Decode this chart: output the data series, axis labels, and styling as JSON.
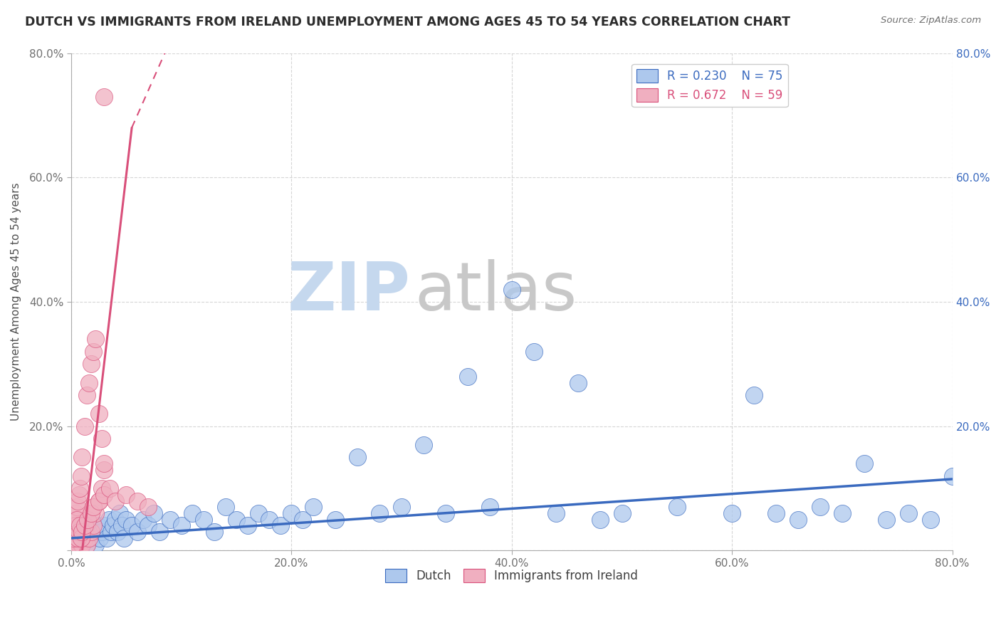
{
  "title": "DUTCH VS IMMIGRANTS FROM IRELAND UNEMPLOYMENT AMONG AGES 45 TO 54 YEARS CORRELATION CHART",
  "source": "Source: ZipAtlas.com",
  "ylabel": "Unemployment Among Ages 45 to 54 years",
  "xlim": [
    0.0,
    0.8
  ],
  "ylim": [
    0.0,
    0.8
  ],
  "xticks": [
    0.0,
    0.2,
    0.4,
    0.6,
    0.8
  ],
  "yticks": [
    0.0,
    0.2,
    0.4,
    0.6,
    0.8
  ],
  "legend_blue_r": "R = 0.230",
  "legend_blue_n": "N = 75",
  "legend_pink_r": "R = 0.672",
  "legend_pink_n": "N = 59",
  "blue_color": "#adc8ed",
  "pink_color": "#f0afc0",
  "blue_line_color": "#3a6abf",
  "pink_line_color": "#d94f7a",
  "title_color": "#2c2c2c",
  "background_color": "#ffffff",
  "watermark_zip_color": "#c5d8ee",
  "watermark_atlas_color": "#c8c8c8",
  "blue_line_x0": 0.0,
  "blue_line_y0": 0.02,
  "blue_line_x1": 0.8,
  "blue_line_y1": 0.115,
  "pink_line_solid_x0": 0.01,
  "pink_line_solid_y0": 0.0,
  "pink_line_solid_x1": 0.055,
  "pink_line_solid_y1": 0.68,
  "pink_line_dash_x0": 0.055,
  "pink_line_dash_y0": 0.68,
  "pink_line_dash_x1": 0.085,
  "pink_line_dash_y1": 0.8,
  "dutch_x": [
    0.002,
    0.003,
    0.004,
    0.005,
    0.006,
    0.007,
    0.008,
    0.009,
    0.01,
    0.012,
    0.014,
    0.016,
    0.018,
    0.02,
    0.022,
    0.024,
    0.026,
    0.028,
    0.03,
    0.032,
    0.034,
    0.036,
    0.038,
    0.04,
    0.042,
    0.044,
    0.046,
    0.048,
    0.05,
    0.055,
    0.06,
    0.065,
    0.07,
    0.075,
    0.08,
    0.09,
    0.1,
    0.11,
    0.12,
    0.13,
    0.14,
    0.15,
    0.16,
    0.17,
    0.18,
    0.19,
    0.2,
    0.21,
    0.22,
    0.24,
    0.26,
    0.28,
    0.3,
    0.32,
    0.34,
    0.36,
    0.38,
    0.4,
    0.42,
    0.44,
    0.46,
    0.48,
    0.5,
    0.55,
    0.6,
    0.62,
    0.64,
    0.66,
    0.68,
    0.7,
    0.72,
    0.74,
    0.76,
    0.78,
    0.8
  ],
  "dutch_y": [
    0.01,
    0.02,
    0.01,
    0.03,
    0.01,
    0.02,
    0.03,
    0.01,
    0.02,
    0.03,
    0.01,
    0.04,
    0.02,
    0.03,
    0.01,
    0.04,
    0.02,
    0.03,
    0.04,
    0.02,
    0.05,
    0.03,
    0.04,
    0.05,
    0.03,
    0.06,
    0.04,
    0.02,
    0.05,
    0.04,
    0.03,
    0.05,
    0.04,
    0.06,
    0.03,
    0.05,
    0.04,
    0.06,
    0.05,
    0.03,
    0.07,
    0.05,
    0.04,
    0.06,
    0.05,
    0.04,
    0.06,
    0.05,
    0.07,
    0.05,
    0.15,
    0.06,
    0.07,
    0.17,
    0.06,
    0.28,
    0.07,
    0.42,
    0.32,
    0.06,
    0.27,
    0.05,
    0.06,
    0.07,
    0.06,
    0.25,
    0.06,
    0.05,
    0.07,
    0.06,
    0.14,
    0.05,
    0.06,
    0.05,
    0.12
  ],
  "ireland_x": [
    0.001,
    0.002,
    0.003,
    0.004,
    0.005,
    0.006,
    0.007,
    0.008,
    0.009,
    0.01,
    0.012,
    0.014,
    0.016,
    0.018,
    0.02,
    0.022,
    0.025,
    0.028,
    0.03,
    0.001,
    0.002,
    0.003,
    0.004,
    0.005,
    0.006,
    0.007,
    0.008,
    0.009,
    0.01,
    0.012,
    0.014,
    0.016,
    0.018,
    0.02,
    0.022,
    0.025,
    0.028,
    0.03,
    0.001,
    0.002,
    0.003,
    0.004,
    0.005,
    0.006,
    0.007,
    0.008,
    0.009,
    0.01,
    0.012,
    0.015,
    0.018,
    0.02,
    0.025,
    0.03,
    0.035,
    0.04,
    0.05,
    0.06,
    0.07
  ],
  "ireland_y": [
    0.01,
    0.01,
    0.02,
    0.01,
    0.01,
    0.02,
    0.01,
    0.02,
    0.01,
    0.01,
    0.02,
    0.01,
    0.02,
    0.03,
    0.04,
    0.06,
    0.08,
    0.1,
    0.13,
    0.03,
    0.04,
    0.05,
    0.06,
    0.07,
    0.08,
    0.09,
    0.1,
    0.12,
    0.15,
    0.2,
    0.25,
    0.27,
    0.3,
    0.32,
    0.34,
    0.22,
    0.18,
    0.14,
    0.01,
    0.02,
    0.03,
    0.04,
    0.05,
    0.02,
    0.03,
    0.04,
    0.02,
    0.03,
    0.04,
    0.05,
    0.06,
    0.07,
    0.08,
    0.09,
    0.1,
    0.08,
    0.09,
    0.08,
    0.07
  ],
  "ireland_high_x": [
    0.03
  ],
  "ireland_high_y": [
    0.73
  ]
}
